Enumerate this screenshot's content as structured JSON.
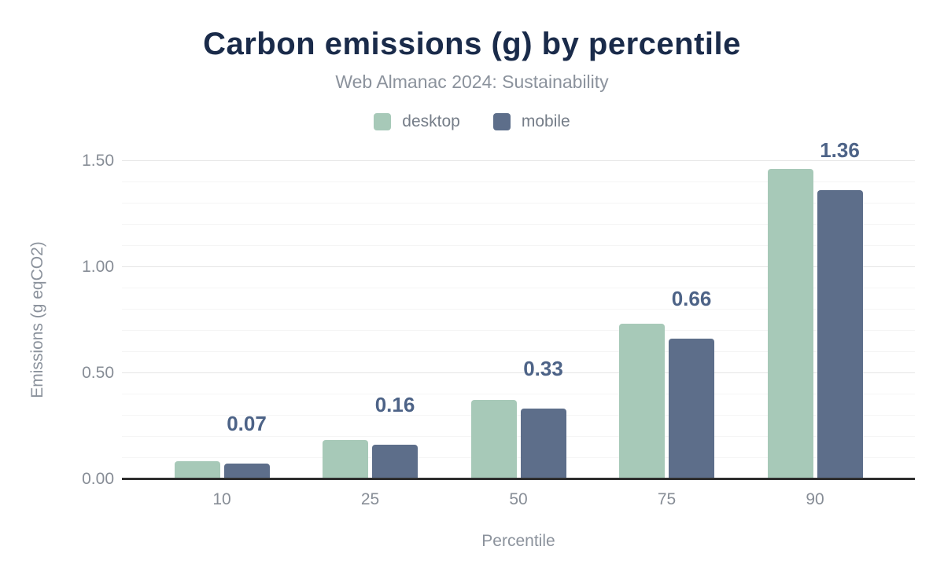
{
  "chart_data": {
    "type": "bar",
    "title": "Carbon emissions (g) by percentile",
    "subtitle": "Web Almanac 2024: Sustainability",
    "xlabel": "Percentile",
    "ylabel": "Emissions (g eqCO2)",
    "categories": [
      "10",
      "25",
      "50",
      "75",
      "90"
    ],
    "series": [
      {
        "name": "desktop",
        "color": "#a7c9b8",
        "values": [
          0.08,
          0.18,
          0.37,
          0.73,
          1.46
        ]
      },
      {
        "name": "mobile",
        "color": "#5d6e8a",
        "values": [
          0.07,
          0.16,
          0.33,
          0.66,
          1.36
        ]
      }
    ],
    "bar_labels": [
      "0.07",
      "0.16",
      "0.33",
      "0.66",
      "1.36"
    ],
    "bar_labels_series": "mobile",
    "yticks": [
      {
        "value": 0.0,
        "label": "0.00"
      },
      {
        "value": 0.5,
        "label": "0.50"
      },
      {
        "value": 1.0,
        "label": "1.00"
      },
      {
        "value": 1.5,
        "label": "1.50"
      }
    ],
    "ylim": [
      0,
      1.5
    ],
    "grid": {
      "minor_step": 0.1,
      "major_step": 0.5,
      "orientation": "horizontal"
    },
    "legend_position": "top",
    "colors": {
      "title": "#1a2b4a",
      "subtitle": "#8b929c",
      "tick_labels": "#878d96",
      "value_labels": "#4d6387",
      "axis_line": "#2e2e2e",
      "background": "#ffffff"
    }
  }
}
